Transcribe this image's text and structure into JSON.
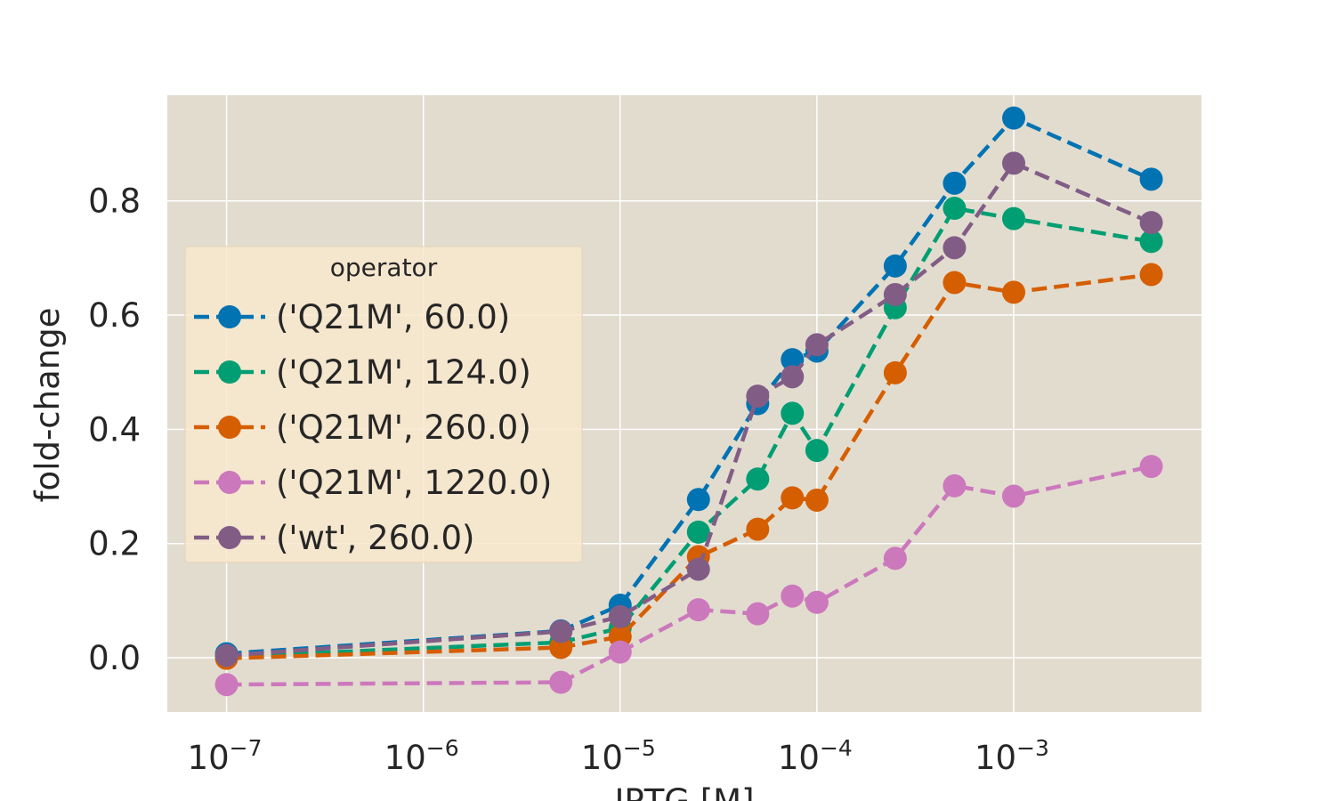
{
  "chart_data": {
    "type": "line",
    "xlabel": "IPTG [M]",
    "ylabel": "fold-change",
    "xscale": "log",
    "xlim": [
      5e-08,
      0.009
    ],
    "ylim": [
      -0.095,
      0.985
    ],
    "xticks": [
      {
        "value": 1e-07,
        "base": "10",
        "exp": "−7"
      },
      {
        "value": 1e-06,
        "base": "10",
        "exp": "−6"
      },
      {
        "value": 1e-05,
        "base": "10",
        "exp": "−5"
      },
      {
        "value": 0.0001,
        "base": "10",
        "exp": "−4"
      },
      {
        "value": 0.001,
        "base": "10",
        "exp": "−3"
      }
    ],
    "yticks": [
      {
        "value": 0.0,
        "label": "0.0"
      },
      {
        "value": 0.2,
        "label": "0.2"
      },
      {
        "value": 0.4,
        "label": "0.4"
      },
      {
        "value": 0.6,
        "label": "0.6"
      },
      {
        "value": 0.8,
        "label": "0.8"
      }
    ],
    "grid": true,
    "legend": {
      "title": "operator",
      "placement": "center-left"
    },
    "x": [
      1e-07,
      5e-06,
      1e-05,
      2.5e-05,
      5e-05,
      7.5e-05,
      0.0001,
      0.00025,
      0.0005,
      0.001,
      0.005
    ],
    "series": [
      {
        "name": "('Q21M', 60.0)",
        "color": "#0173b2",
        "values": [
          0.007,
          0.047,
          0.092,
          0.277,
          0.445,
          0.522,
          0.537,
          0.686,
          0.831,
          0.945,
          0.838
        ]
      },
      {
        "name": "('Q21M', 124.0)",
        "color": "#029e73",
        "values": [
          0.002,
          0.027,
          0.052,
          0.22,
          0.313,
          0.428,
          0.363,
          0.613,
          0.787,
          0.769,
          0.729
        ]
      },
      {
        "name": "('Q21M', 260.0)",
        "color": "#d55e00",
        "values": [
          -0.001,
          0.018,
          0.037,
          0.177,
          0.225,
          0.28,
          0.276,
          0.499,
          0.657,
          0.64,
          0.671
        ]
      },
      {
        "name": "('Q21M', 1220.0)",
        "color": "#cc78bc",
        "values": [
          -0.047,
          -0.043,
          0.01,
          0.084,
          0.077,
          0.108,
          0.097,
          0.174,
          0.301,
          0.283,
          0.335
        ]
      },
      {
        "name": "('wt', 260.0)",
        "color": "#815d86",
        "values": [
          0.004,
          0.046,
          0.072,
          0.155,
          0.458,
          0.492,
          0.548,
          0.636,
          0.718,
          0.866,
          0.762
        ]
      }
    ],
    "colors": {
      "plot_background": "#e2dccf",
      "grid": "#ffffff",
      "legend_background": "#f8e8ce"
    }
  }
}
